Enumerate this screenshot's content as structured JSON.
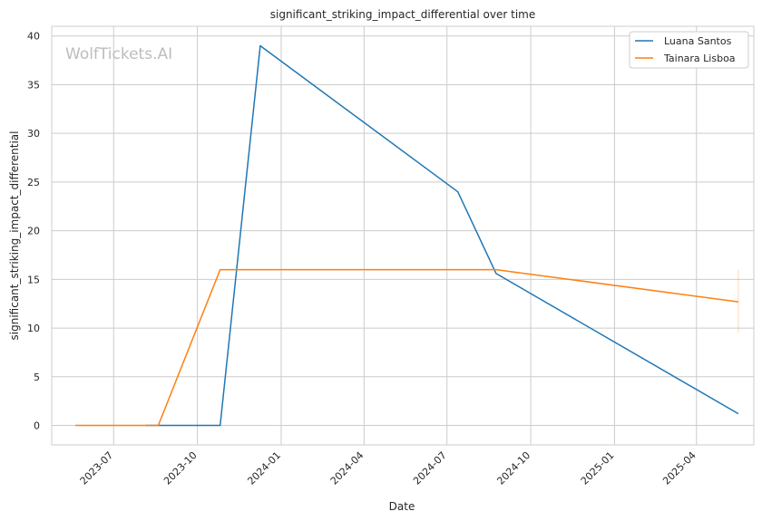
{
  "chart_data": {
    "type": "line",
    "title": "significant_striking_impact_differential over time",
    "xlabel": "Date",
    "ylabel": "significant_striking_impact_differential",
    "watermark": "WolfTickets.AI",
    "x_ticks": [
      "2023-07",
      "2023-10",
      "2024-01",
      "2024-04",
      "2024-07",
      "2024-10",
      "2025-01",
      "2025-04"
    ],
    "y_ticks": [
      0,
      5,
      10,
      15,
      20,
      25,
      30,
      35,
      40
    ],
    "ylim": [
      -2,
      41
    ],
    "xlim": [
      "2023-04-24",
      "2025-06-03"
    ],
    "grid": true,
    "legend_position": "top-right",
    "series": [
      {
        "name": "Luana Santos",
        "color": "#1f77b4",
        "points": [
          {
            "x": "2023-08-05",
            "y": 0
          },
          {
            "x": "2023-10-26",
            "y": 0
          },
          {
            "x": "2023-12-09",
            "y": 39
          },
          {
            "x": "2024-07-13",
            "y": 24
          },
          {
            "x": "2024-08-24",
            "y": 15.6
          },
          {
            "x": "2025-05-17",
            "y": 1.2
          }
        ]
      },
      {
        "name": "Tainara Lisboa",
        "color": "#ff7f0e",
        "points": [
          {
            "x": "2023-05-20",
            "y": 0
          },
          {
            "x": "2023-08-19",
            "y": 0
          },
          {
            "x": "2023-10-26",
            "y": 16
          },
          {
            "x": "2024-08-24",
            "y": 16
          },
          {
            "x": "2025-05-17",
            "y": 12.7
          }
        ],
        "error_bar": {
          "x": "2025-05-17",
          "low": 9.5,
          "high": 16
        }
      }
    ]
  }
}
